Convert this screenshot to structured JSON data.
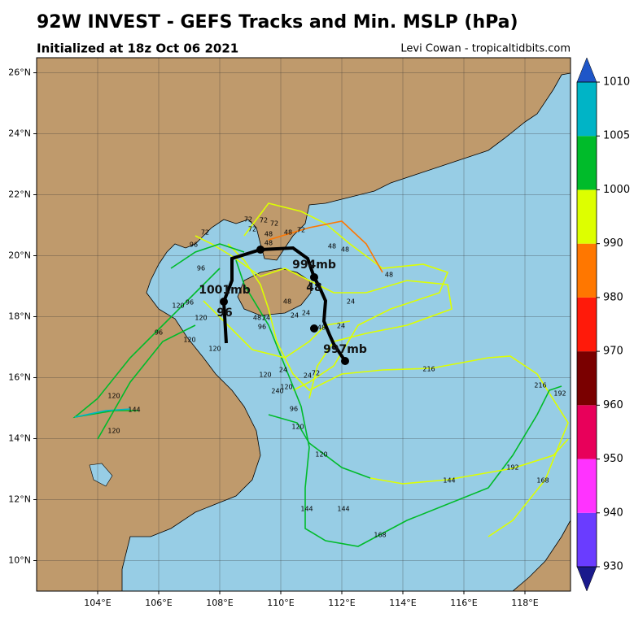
{
  "header": {
    "title": "92W INVEST - GEFS Tracks and Min. MSLP (hPa)",
    "subtitle": "Initialized at 18z Oct 06 2021",
    "credit": "Levi Cowan - tropicaltidbits.com"
  },
  "map": {
    "lon_ticks": [
      {
        "value": 104,
        "label": "104°E"
      },
      {
        "value": 106,
        "label": "106°E"
      },
      {
        "value": 108,
        "label": "108°E"
      },
      {
        "value": 110,
        "label": "110°E"
      },
      {
        "value": 112,
        "label": "112°E"
      },
      {
        "value": 114,
        "label": "114°E"
      },
      {
        "value": 116,
        "label": "116°E"
      },
      {
        "value": 118,
        "label": "118°E"
      }
    ],
    "lat_ticks": [
      {
        "value": 10,
        "label": "10°N"
      },
      {
        "value": 12,
        "label": "12°N"
      },
      {
        "value": 14,
        "label": "14°N"
      },
      {
        "value": 16,
        "label": "16°N"
      },
      {
        "value": 18,
        "label": "18°N"
      },
      {
        "value": 20,
        "label": "20°N"
      },
      {
        "value": 22,
        "label": "22°N"
      },
      {
        "value": 24,
        "label": "24°N"
      },
      {
        "value": 26,
        "label": "26°N"
      }
    ],
    "annotations": [
      "1001mb",
      "96",
      "994mb",
      "48",
      "997mb"
    ],
    "hour_labels": [
      "72",
      "72",
      "72",
      "72",
      "48",
      "48",
      "72",
      "96",
      "96",
      "72",
      "48",
      "48",
      "48",
      "120",
      "96",
      "120",
      "96",
      "48",
      "24",
      "24",
      "24",
      "48",
      "24",
      "120",
      "120",
      "24",
      "24",
      "72",
      "120",
      "240",
      "96",
      "120",
      "120",
      "216",
      "216",
      "192",
      "192",
      "144",
      "168",
      "144",
      "144",
      "168",
      "120",
      "144",
      "120",
      "120",
      "48",
      "24",
      "48",
      "96"
    ]
  },
  "colorbar": {
    "ticks": [
      930,
      940,
      950,
      960,
      970,
      980,
      990,
      1000,
      1005,
      1010
    ],
    "colors": [
      "#6a3cff",
      "#ff33ff",
      "#e8005a",
      "#7a0000",
      "#ff1a0a",
      "#ff7700",
      "#ddff00",
      "#00bb2a",
      "#00b4c6"
    ],
    "under_color": "#1a1a8c",
    "over_color": "#1f56c8"
  }
}
